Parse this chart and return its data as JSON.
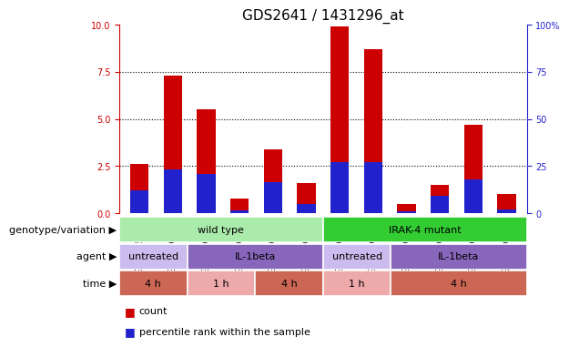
{
  "title": "GDS2641 / 1431296_at",
  "samples": [
    "GSM155304",
    "GSM156795",
    "GSM156796",
    "GSM156797",
    "GSM156798",
    "GSM156799",
    "GSM156800",
    "GSM156801",
    "GSM156802",
    "GSM156803",
    "GSM156804",
    "GSM156805"
  ],
  "count_values": [
    2.6,
    7.3,
    5.5,
    0.8,
    3.4,
    1.6,
    9.9,
    8.7,
    0.5,
    1.5,
    4.7,
    1.0
  ],
  "percentile_values": [
    12,
    23,
    21,
    1.5,
    16.5,
    5,
    27,
    27,
    1.0,
    9,
    18,
    2
  ],
  "bar_color": "#cc0000",
  "blue_color": "#2222cc",
  "ylim_left": [
    0,
    10
  ],
  "ylim_right": [
    0,
    100
  ],
  "yticks_left": [
    0,
    2.5,
    5,
    7.5,
    10
  ],
  "yticks_right": [
    0,
    25,
    50,
    75,
    100
  ],
  "grid_dotted_at": [
    2.5,
    5.0,
    7.5
  ],
  "bar_width": 0.55,
  "genotype_segments": [
    {
      "text": "wild type",
      "start": 0,
      "end": 6,
      "color": "#aaeaaa"
    },
    {
      "text": "IRAK-4 mutant",
      "start": 6,
      "end": 12,
      "color": "#33cc33"
    }
  ],
  "agent_segments": [
    {
      "text": "untreated",
      "start": 0,
      "end": 2,
      "color": "#ccbbee"
    },
    {
      "text": "IL-1beta",
      "start": 2,
      "end": 6,
      "color": "#8866bb"
    },
    {
      "text": "untreated",
      "start": 6,
      "end": 8,
      "color": "#ccbbee"
    },
    {
      "text": "IL-1beta",
      "start": 8,
      "end": 12,
      "color": "#8866bb"
    }
  ],
  "time_segments": [
    {
      "text": "4 h",
      "start": 0,
      "end": 2,
      "color": "#cc6655"
    },
    {
      "text": "1 h",
      "start": 2,
      "end": 4,
      "color": "#eeaaaa"
    },
    {
      "text": "4 h",
      "start": 4,
      "end": 6,
      "color": "#cc6655"
    },
    {
      "text": "1 h",
      "start": 6,
      "end": 8,
      "color": "#eeaaaa"
    },
    {
      "text": "4 h",
      "start": 8,
      "end": 12,
      "color": "#cc6655"
    }
  ],
  "row_labels": [
    "genotype/variation",
    "agent",
    "time"
  ],
  "bg_color": "#ffffff",
  "left_axis_color": "#cc0000",
  "right_axis_color": "#2222cc",
  "title_fontsize": 11,
  "tick_fontsize": 7,
  "row_label_fontsize": 8,
  "row_text_fontsize": 8,
  "legend_fontsize": 8
}
